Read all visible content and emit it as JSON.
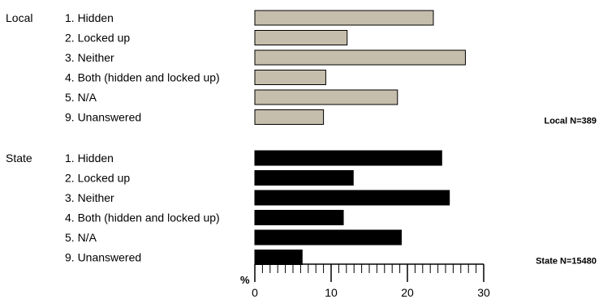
{
  "chart_data": {
    "type": "bar",
    "orientation": "horizontal",
    "xlabel": "%",
    "xlim": [
      0,
      30
    ],
    "x_major_ticks": [
      0,
      10,
      20,
      30
    ],
    "x_minor_step": 1,
    "grid": false,
    "categories": [
      "1. Hidden",
      "2. Locked up",
      "3. Neither",
      "4. Both (hidden and locked up)",
      "5. N/A",
      "9. Unanswered"
    ],
    "series": [
      {
        "name": "Local",
        "sample_label": "Local N=389",
        "color": "#c6beac",
        "values": [
          23.4,
          12.1,
          27.6,
          9.3,
          18.7,
          9.0
        ]
      },
      {
        "name": "State",
        "sample_label": "State N=15480",
        "color": "#000000",
        "values": [
          24.5,
          12.9,
          25.5,
          11.6,
          19.2,
          6.2
        ]
      }
    ]
  }
}
